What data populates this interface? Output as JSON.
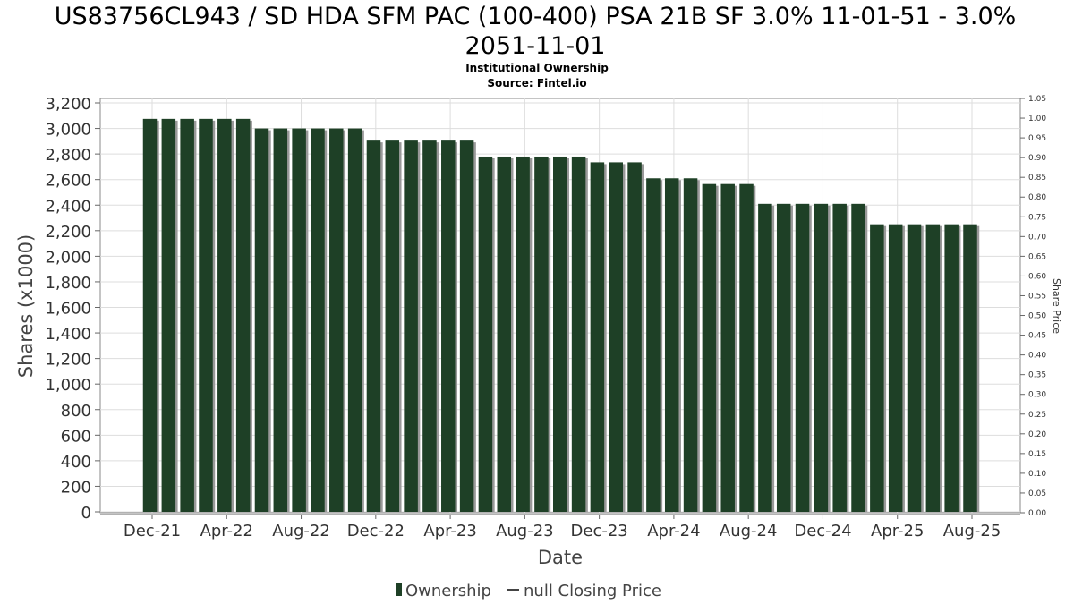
{
  "chart_data": {
    "type": "bar",
    "title_line1": "US83756CL943 / SD HDA SFM PAC (100-400) PSA 21B SF 3.0% 11-01-51 - 3.0%",
    "title_line2": "2051-11-01",
    "subtitle1": "Institutional Ownership",
    "subtitle2": "Source: Fintel.io",
    "xlabel": "Date",
    "ylabel": "Shares (x1000)",
    "y2label": "Share Price",
    "ylim": [
      0,
      3200
    ],
    "y_ticks": [
      0,
      200,
      400,
      600,
      800,
      1000,
      1200,
      1400,
      1600,
      1800,
      2000,
      2200,
      2400,
      2600,
      2800,
      3000,
      3200
    ],
    "y_tick_labels": [
      "0",
      "200",
      "400",
      "600",
      "800",
      "1,000",
      "1,200",
      "1,400",
      "1,600",
      "1,800",
      "2,000",
      "2,200",
      "2,400",
      "2,600",
      "2,800",
      "3,000",
      "3,200"
    ],
    "y2lim": [
      0,
      1.05
    ],
    "y2_tick_labels": [
      "0.00",
      "0.05",
      "0.10",
      "0.15",
      "0.20",
      "0.25",
      "0.30",
      "0.35",
      "0.40",
      "0.45",
      "0.50",
      "0.55",
      "0.60",
      "0.65",
      "0.70",
      "0.75",
      "0.80",
      "0.85",
      "0.90",
      "0.95",
      "1.00",
      "1.05"
    ],
    "x_tick_labels": [
      "Dec-21",
      "Apr-22",
      "Aug-22",
      "Dec-22",
      "Apr-23",
      "Aug-23",
      "Dec-23",
      "Apr-24",
      "Aug-24",
      "Dec-24",
      "Apr-25",
      "Aug-25"
    ],
    "grid": true,
    "legend_position": "bottom",
    "series": [
      {
        "name": "Ownership",
        "color": "#1e4026",
        "values": [
          3075,
          3075,
          3075,
          3075,
          3075,
          3075,
          3000,
          3000,
          3000,
          3000,
          3000,
          3000,
          2905,
          2905,
          2905,
          2905,
          2905,
          2905,
          2780,
          2780,
          2780,
          2780,
          2780,
          2780,
          2735,
          2735,
          2735,
          2610,
          2610,
          2610,
          2565,
          2565,
          2565,
          2410,
          2410,
          2410,
          2410,
          2410,
          2410,
          2250,
          2250,
          2250,
          2250,
          2250,
          2250
        ]
      }
    ],
    "legend": [
      {
        "label": "Ownership",
        "kind": "bar"
      },
      {
        "label": "null Closing Price",
        "kind": "line"
      }
    ]
  }
}
